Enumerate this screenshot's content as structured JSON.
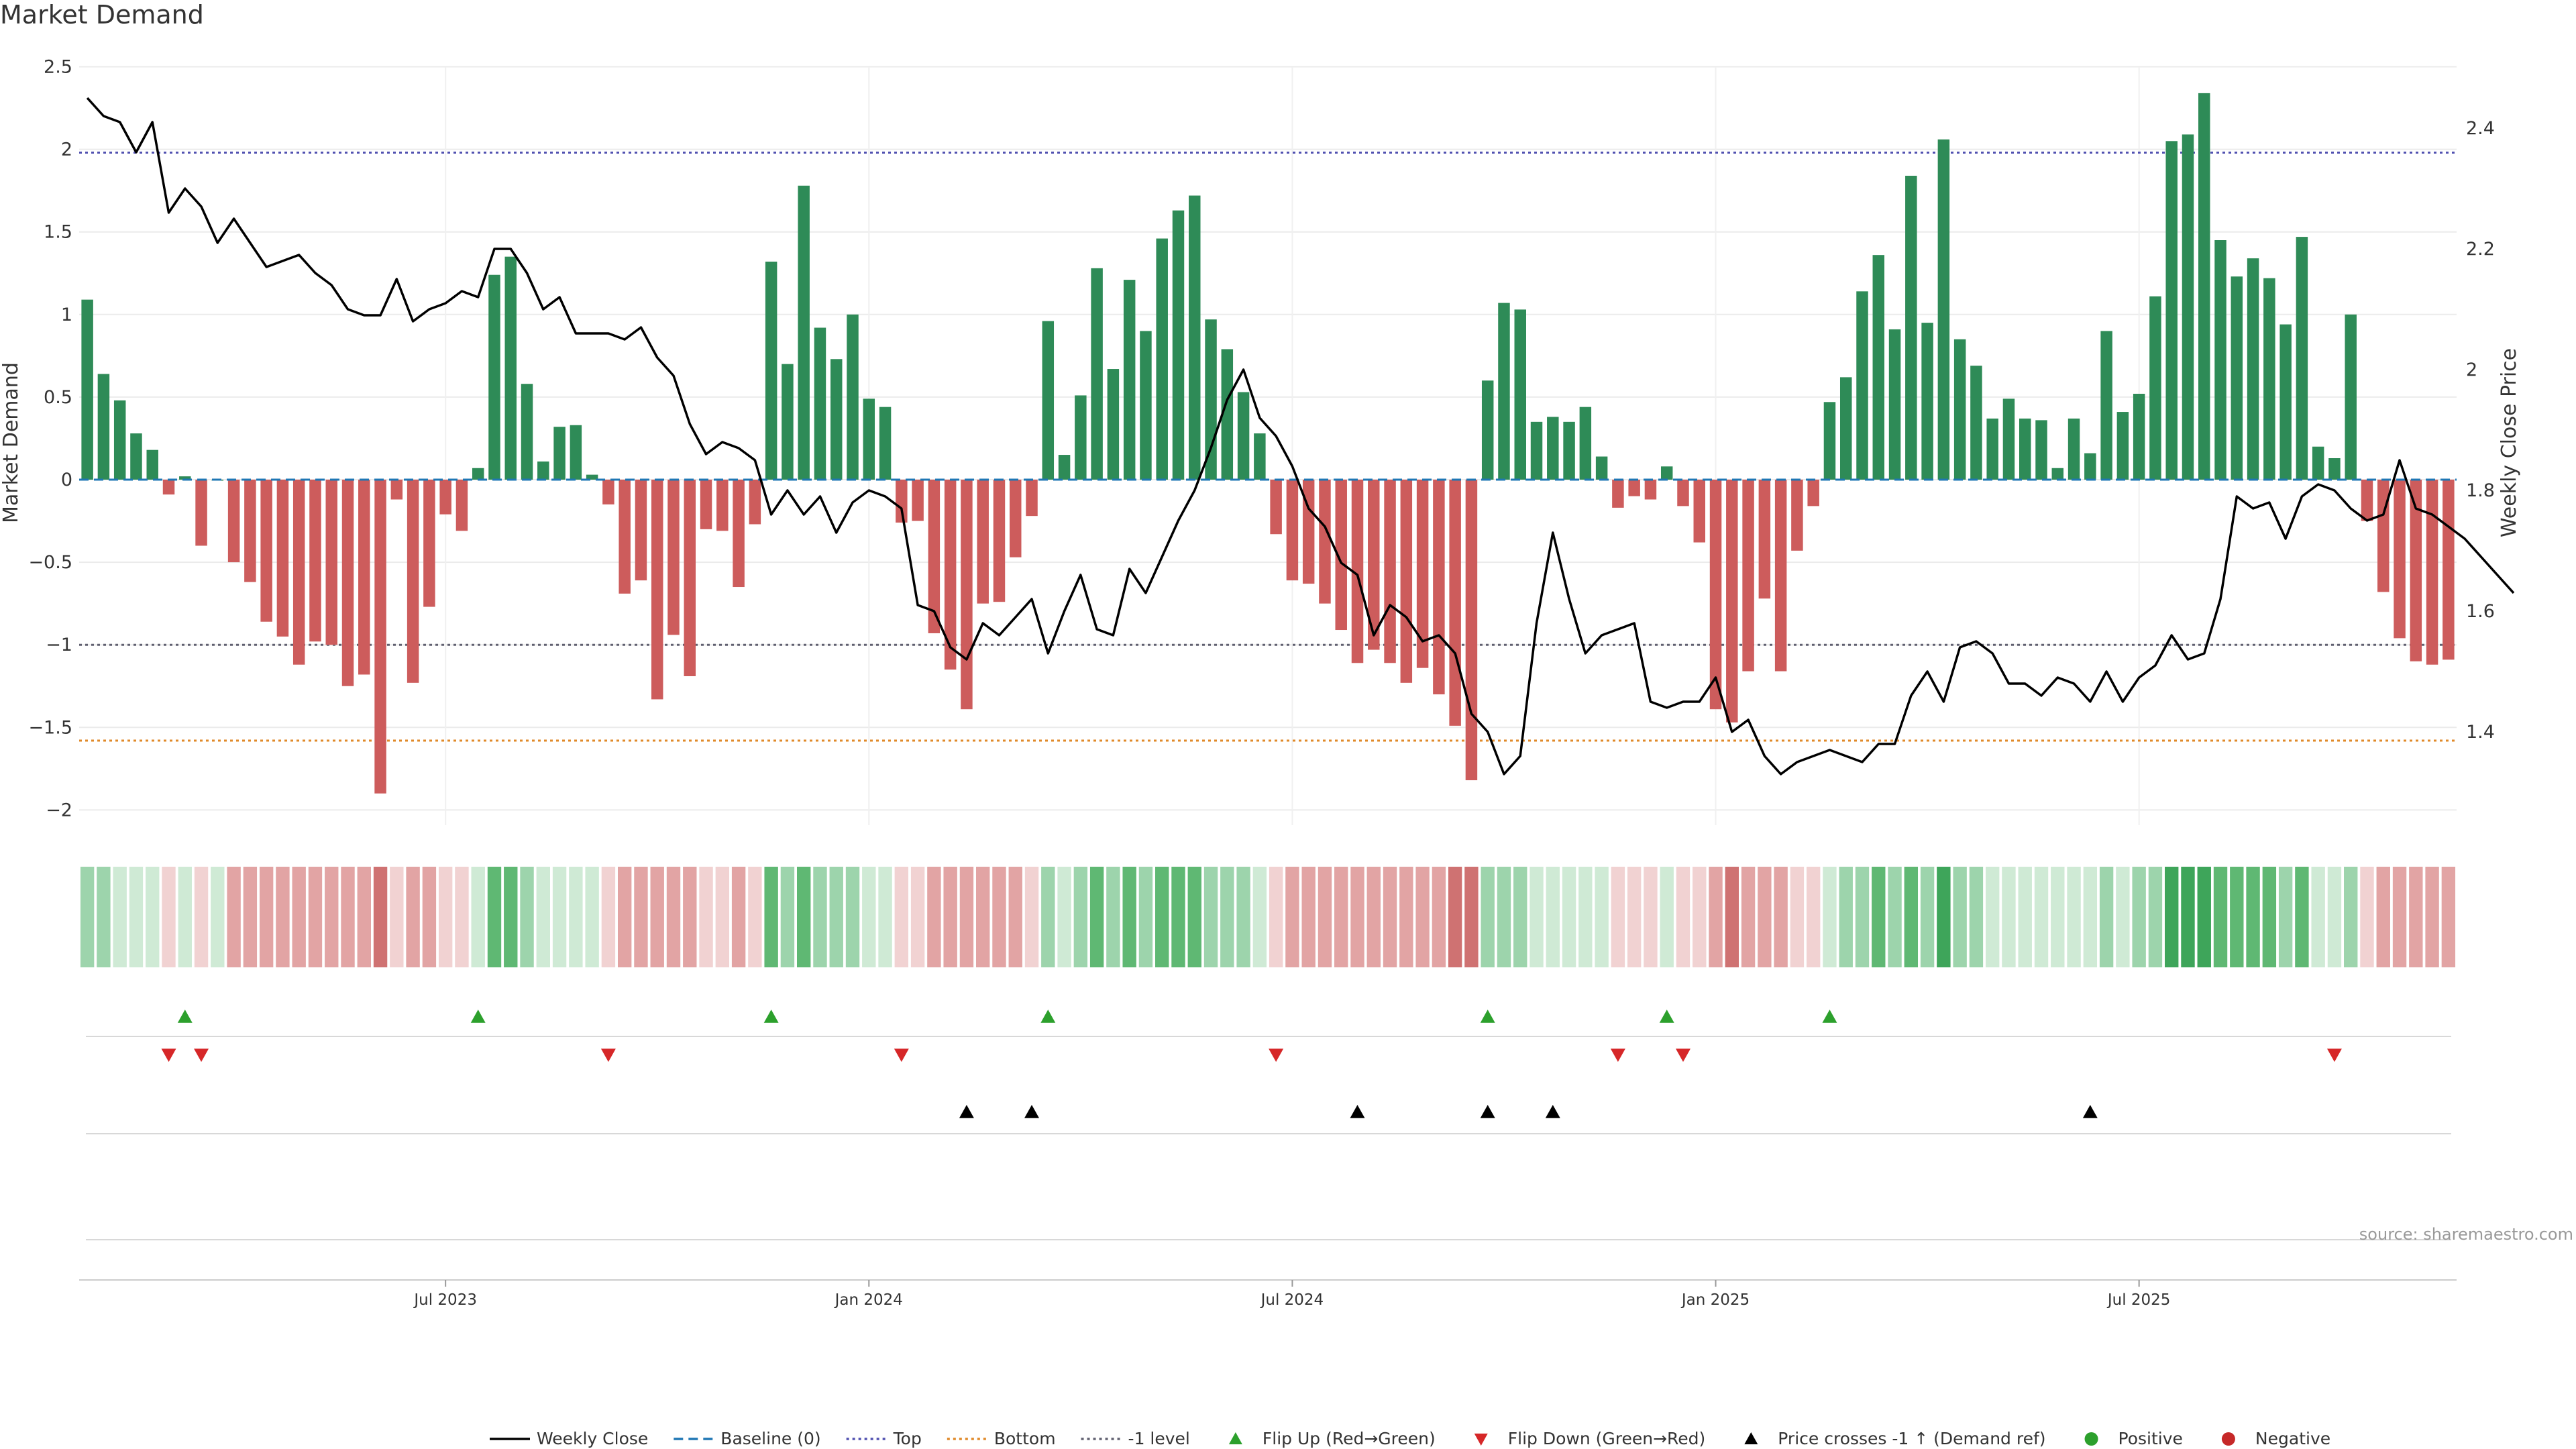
{
  "page": {
    "title": "Market Demand",
    "source": "source: sharemaestro.com"
  },
  "chart_data": {
    "type": "bar",
    "title": "Market Demand",
    "ylabel": "Market Demand",
    "y2label": "Weekly Close Price",
    "ylim": [
      -2.1,
      2.5
    ],
    "y2lim": [
      1.28,
      2.5
    ],
    "y_ticks": [
      2.5,
      2,
      1.5,
      1,
      0.5,
      0,
      -0.5,
      -1,
      -1.5,
      -2
    ],
    "y_tick_labels": [
      "2.5",
      "2",
      "1.5",
      "1",
      "0.5",
      "0",
      "−0.5",
      "−1",
      "−1.5",
      "−2"
    ],
    "y2_ticks": [
      2.4,
      2.2,
      2,
      1.8,
      1.6,
      1.4
    ],
    "y2_tick_labels": [
      "2.4",
      "2.2",
      "2",
      "1.8",
      "1.6",
      "1.4"
    ],
    "reference_lines": [
      {
        "name": "Top",
        "value": 1.98,
        "color": "#5050b0",
        "style": "dotted"
      },
      {
        "name": "-1 level",
        "value": -1,
        "color": "#606070",
        "style": "dotted"
      },
      {
        "name": "Bottom",
        "value": -1.58,
        "color": "#e08a2a",
        "style": "dotted"
      }
    ],
    "x_date_labels": [
      {
        "label": "Jul 2023",
        "week": 22
      },
      {
        "label": "Jan 2024",
        "week": 48
      },
      {
        "label": "Jul 2024",
        "week": 74
      },
      {
        "label": "Jan 2025",
        "week": 100
      },
      {
        "label": "Jul 2025",
        "week": 126
      }
    ],
    "demand": [
      1.09,
      0.64,
      0.48,
      0.28,
      0.18,
      -0.09,
      0.02,
      -0.4,
      0,
      -0.5,
      -0.62,
      -0.86,
      -0.95,
      -1.12,
      -0.98,
      -1.0,
      -1.25,
      -1.18,
      -1.9,
      -0.12,
      -1.23,
      -0.77,
      -0.21,
      -0.31,
      0.07,
      1.24,
      1.35,
      0.58,
      0.11,
      0.32,
      0.33,
      0.03,
      -0.15,
      -0.69,
      -0.61,
      -1.33,
      -0.94,
      -1.19,
      -0.3,
      -0.31,
      -0.65,
      -0.27,
      1.32,
      0.7,
      1.78,
      0.92,
      0.73,
      1.0,
      0.49,
      0.44,
      -0.26,
      -0.25,
      -0.93,
      -1.15,
      -1.39,
      -0.75,
      -0.74,
      -0.47,
      -0.22,
      0.96,
      0.15,
      0.51,
      1.28,
      0.67,
      1.21,
      0.9,
      1.46,
      1.63,
      1.72,
      0.97,
      0.79,
      0.53,
      0.28,
      -0.33,
      -0.61,
      -0.63,
      -0.75,
      -0.91,
      -1.11,
      -1.03,
      -1.11,
      -1.23,
      -1.14,
      -1.3,
      -1.49,
      -1.82,
      0.6,
      1.07,
      1.03,
      0.35,
      0.38,
      0.35,
      0.44,
      0.14,
      -0.17,
      -0.1,
      -0.12,
      0.08,
      -0.16,
      -0.38,
      -1.39,
      -1.47,
      -1.16,
      -0.72,
      -1.16,
      -0.43,
      -0.16,
      0.47,
      0.62,
      1.14,
      1.36,
      0.91,
      1.84,
      0.95,
      2.06,
      0.85,
      0.69,
      0.37,
      0.49,
      0.37,
      0.36,
      0.07,
      0.37,
      0.16,
      0.9,
      0.41,
      0.52,
      1.11,
      2.05,
      2.09,
      2.34,
      1.45,
      1.23,
      1.34,
      1.22,
      0.94,
      1.47,
      0.2,
      0.13,
      1.0,
      -0.25,
      -0.68,
      -0.96,
      -1.1,
      -1.12,
      -1.09
    ],
    "weekly_close": [
      2.45,
      2.42,
      2.41,
      2.36,
      2.41,
      2.26,
      2.3,
      2.27,
      2.21,
      2.25,
      2.21,
      2.17,
      2.18,
      2.19,
      2.16,
      2.14,
      2.1,
      2.09,
      2.09,
      2.15,
      2.08,
      2.1,
      2.11,
      2.13,
      2.12,
      2.2,
      2.2,
      2.16,
      2.1,
      2.12,
      2.06,
      2.06,
      2.06,
      2.05,
      2.07,
      2.02,
      1.99,
      1.91,
      1.86,
      1.88,
      1.87,
      1.85,
      1.76,
      1.8,
      1.76,
      1.79,
      1.73,
      1.78,
      1.8,
      1.79,
      1.77,
      1.61,
      1.6,
      1.54,
      1.52,
      1.58,
      1.56,
      1.59,
      1.62,
      1.53,
      1.6,
      1.66,
      1.57,
      1.56,
      1.67,
      1.63,
      1.69,
      1.75,
      1.8,
      1.87,
      1.95,
      2.0,
      1.92,
      1.89,
      1.84,
      1.77,
      1.74,
      1.68,
      1.66,
      1.56,
      1.61,
      1.59,
      1.55,
      1.56,
      1.53,
      1.43,
      1.4,
      1.33,
      1.36,
      1.58,
      1.73,
      1.62,
      1.53,
      1.56,
      1.57,
      1.58,
      1.45,
      1.44,
      1.45,
      1.45,
      1.49,
      1.4,
      1.42,
      1.36,
      1.33,
      1.35,
      1.36,
      1.37,
      1.36,
      1.35,
      1.38,
      1.38,
      1.46,
      1.5,
      1.45,
      1.54,
      1.55,
      1.53,
      1.48,
      1.48,
      1.46,
      1.49,
      1.48,
      1.45,
      1.5,
      1.45,
      1.49,
      1.51,
      1.56,
      1.52,
      1.53,
      1.62,
      1.79,
      1.77,
      1.78,
      1.72,
      1.79,
      1.81,
      1.8,
      1.77,
      1.75,
      1.76,
      1.85,
      1.77,
      1.76,
      1.74,
      1.72,
      1.69,
      1.66,
      1.63
    ]
  },
  "strip_colors": {
    "pos_light": "#cfead5",
    "pos_mid": "#9dd4ac",
    "pos_strong": "#5fb873",
    "pos_max": "#3ea55a",
    "neg_light": "#f1d2d2",
    "neg_mid": "#e2a4a4",
    "neg_strong": "#cf7272"
  },
  "signals": {
    "flip_up_weeks": [
      6,
      24,
      42,
      59,
      86,
      97,
      107
    ],
    "flip_down_weeks": [
      5,
      7,
      32,
      50,
      73,
      94,
      98,
      138
    ],
    "price_cross_weeks": [
      54,
      58,
      78,
      86,
      90,
      123
    ]
  },
  "colors": {
    "positive_bar": "#2e8b57",
    "negative_bar": "#cd5c5c",
    "price_line": "#000000",
    "baseline": "#1f77b4",
    "flip_up": "#2ca02c",
    "flip_down": "#d62728",
    "price_cross": "#000000",
    "positive_dot": "#2ca02c",
    "negative_dot": "#c62828"
  },
  "legend": [
    {
      "label": "Weekly Close",
      "kind": "line",
      "color": "#000000"
    },
    {
      "label": "Baseline (0)",
      "kind": "dash",
      "color": "#1f77b4"
    },
    {
      "label": "Top",
      "kind": "dot",
      "color": "#5050b0"
    },
    {
      "label": "Bottom",
      "kind": "dot",
      "color": "#e08a2a"
    },
    {
      "label": "-1 level",
      "kind": "dot",
      "color": "#606070"
    },
    {
      "label": "Flip Up (Red→Green)",
      "kind": "tri-up",
      "color": "#2ca02c"
    },
    {
      "label": "Flip Down (Green→Red)",
      "kind": "tri-down",
      "color": "#d62728"
    },
    {
      "label": "Price crosses -1 ↑ (Demand ref)",
      "kind": "tri-up",
      "color": "#000000"
    },
    {
      "label": "Positive",
      "kind": "circle",
      "color": "#2ca02c"
    },
    {
      "label": "Negative",
      "kind": "circle",
      "color": "#c62828"
    }
  ]
}
